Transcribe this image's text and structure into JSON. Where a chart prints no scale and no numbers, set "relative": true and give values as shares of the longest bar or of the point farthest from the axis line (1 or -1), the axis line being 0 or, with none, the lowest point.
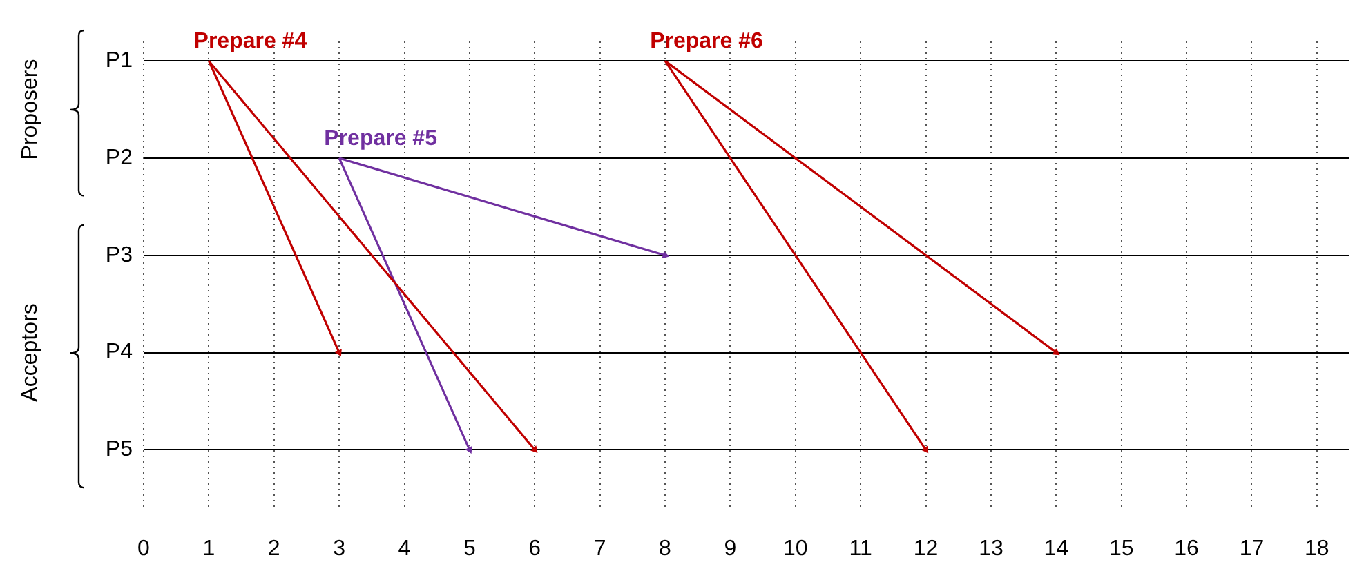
{
  "chart_data": {
    "type": "line",
    "xlim": [
      0,
      18.5
    ],
    "xticks": [
      0,
      1,
      2,
      3,
      4,
      5,
      6,
      7,
      8,
      9,
      10,
      11,
      12,
      13,
      14,
      15,
      16,
      17,
      18
    ],
    "relative": true,
    "y_categories": [
      "P1",
      "P2",
      "P3",
      "P4",
      "P5"
    ],
    "grid": true,
    "legend": false,
    "annotations": [
      "Proposers",
      "Acceptors"
    ],
    "series": [
      {
        "name": "Prepare #4",
        "color": "#c00000",
        "x": [
          1,
          3,
          null,
          1,
          6
        ],
        "values": [
          1,
          0.25,
          null,
          1,
          0
        ]
      },
      {
        "name": "Prepare #5",
        "color": "#7030a0",
        "x": [
          3,
          8,
          null,
          3,
          5
        ],
        "values": [
          0.75,
          0.5,
          null,
          0.75,
          0
        ]
      },
      {
        "name": "Prepare #6",
        "color": "#c00000",
        "x": [
          8,
          12,
          null,
          8,
          14
        ],
        "values": [
          1,
          0,
          null,
          1,
          0.25
        ]
      }
    ]
  }
}
